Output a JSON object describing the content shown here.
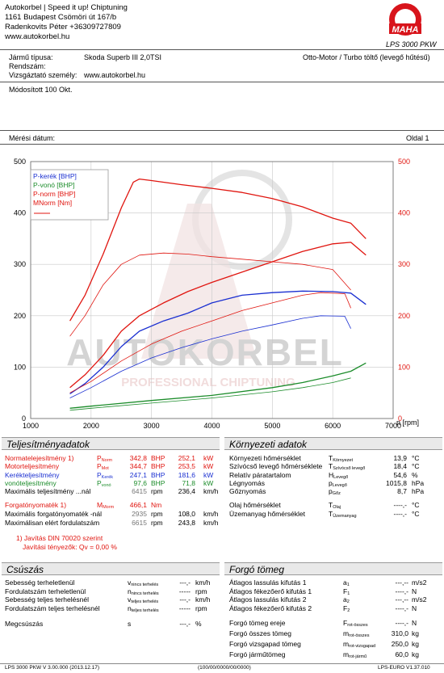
{
  "header": {
    "company_lines": [
      "Autokorbel | Speed it up! Chiptuning",
      "1161 Budapest Csömöri út 167/b",
      "Radenkovits Péter +36309727809",
      "www.autokorbel.hu"
    ],
    "logo_ring_text": "Maschinenbau Haldenwang",
    "logo_text": "MAHA",
    "product": "LPS 3000 PKW"
  },
  "vehicle": {
    "type_label": "Jármű típusa:",
    "type_value": "Skoda Superb III 2,0TSI",
    "engine": "Otto-Motor / Turbo töltő (levegő hűtésű)",
    "reg_label": "Rendszám:",
    "reg_value": "",
    "examiner_label": "Vizsgáztató személy:",
    "examiner_value": "www.autokorbel.hu",
    "modified": "Módosított 100 Okt.",
    "date_label": "Mérési dátum:",
    "page": "Oldal 1"
  },
  "chart_data": {
    "type": "line",
    "x_label": "n [rpm]",
    "xlim": [
      1000,
      7000
    ],
    "x_ticks": [
      1000,
      2000,
      3000,
      4000,
      5000,
      6000,
      7000
    ],
    "ylim_left": [
      0,
      500
    ],
    "ylim_right": [
      0,
      500
    ],
    "y_ticks": [
      0,
      100,
      200,
      300,
      400,
      500
    ],
    "legend": [
      {
        "label": "P-kerék [BHP]",
        "color": "#1a2fd1"
      },
      {
        "label": "P-vonó [BHP]",
        "color": "#1b8c2a"
      },
      {
        "label": "P-norm [BHP]",
        "color": "#e0150f"
      },
      {
        "label": "MNorm [Nm]",
        "color": "#e0150f"
      }
    ],
    "watermark": {
      "line1": "AUTOKORBEL",
      "line2": "PROFESSIONAL CHIPTUNING"
    },
    "series": [
      {
        "name": "P-kerék [BHP]",
        "color": "#1a2fd1",
        "x": [
          1650,
          1900,
          2200,
          2500,
          2800,
          3200,
          3600,
          4000,
          4500,
          5000,
          5500,
          6000,
          6300,
          6550
        ],
        "y": [
          48,
          68,
          100,
          140,
          170,
          190,
          205,
          225,
          240,
          245,
          248,
          247,
          244,
          222
        ]
      },
      {
        "name": "P-kerék (stock)",
        "color": "#1a2fd1",
        "x": [
          1650,
          2000,
          2500,
          3000,
          3500,
          4000,
          4500,
          5000,
          5500,
          5800,
          6200,
          6300
        ],
        "y": [
          40,
          60,
          92,
          118,
          138,
          155,
          170,
          182,
          195,
          200,
          199,
          175
        ]
      },
      {
        "name": "P-vonó [BHP]",
        "color": "#1b8c2a",
        "x": [
          1650,
          2000,
          3000,
          4000,
          5000,
          5500,
          6000,
          6300,
          6550
        ],
        "y": [
          20,
          24,
          35,
          45,
          60,
          70,
          83,
          92,
          108
        ]
      },
      {
        "name": "P-vonó (stock)",
        "color": "#1b8c2a",
        "x": [
          1650,
          2000,
          3000,
          4000,
          5000,
          5500,
          6000,
          6300
        ],
        "y": [
          16,
          20,
          30,
          40,
          52,
          60,
          70,
          79
        ]
      },
      {
        "name": "P-norm [BHP]",
        "color": "#e0150f",
        "x": [
          1650,
          1900,
          2200,
          2500,
          2800,
          3200,
          3600,
          4000,
          4500,
          5000,
          5500,
          6000,
          6300,
          6550
        ],
        "y": [
          60,
          85,
          123,
          170,
          200,
          225,
          247,
          265,
          285,
          305,
          325,
          340,
          343,
          318
        ]
      },
      {
        "name": "P-norm (stock)",
        "color": "#e0150f",
        "x": [
          1650,
          2000,
          2500,
          3000,
          3500,
          4000,
          4500,
          5000,
          5500,
          5800,
          6200,
          6300
        ],
        "y": [
          50,
          72,
          112,
          145,
          170,
          190,
          210,
          225,
          240,
          245,
          243,
          215
        ]
      },
      {
        "name": "MNorm [Nm]",
        "color": "#e0150f",
        "x": [
          1650,
          1900,
          2200,
          2500,
          2700,
          2800,
          3000,
          3500,
          4000,
          4500,
          5000,
          5500,
          6000,
          6300,
          6550
        ],
        "y": [
          190,
          240,
          320,
          410,
          460,
          466,
          463,
          455,
          448,
          440,
          428,
          412,
          390,
          380,
          350
        ]
      },
      {
        "name": "MNorm (stock)",
        "color": "#e0150f",
        "x": [
          1650,
          1900,
          2200,
          2500,
          2800,
          3200,
          3600,
          4000,
          4500,
          5000,
          5500,
          6000,
          6300
        ],
        "y": [
          160,
          200,
          260,
          300,
          318,
          322,
          320,
          315,
          310,
          305,
          300,
          290,
          250
        ]
      }
    ]
  },
  "performance": {
    "title": "Teljesítményadatok",
    "rows": [
      {
        "label": "Normatelejesítmény 1)",
        "sym": "P",
        "sub": "Norm",
        "v1": "342,8",
        "u1": "BHP",
        "v2": "252,1",
        "u2": "kW",
        "color": "red"
      },
      {
        "label": "Motorteljesítmény",
        "sym": "P",
        "sub": "Mot",
        "v1": "344,7",
        "u1": "BHP",
        "v2": "253,5",
        "u2": "kW",
        "color": "red"
      },
      {
        "label": "Kerékteljesítmény",
        "sym": "P",
        "sub": "Kerék",
        "v1": "247,1",
        "u1": "BHP",
        "v2": "181,6",
        "u2": "kW",
        "color": "blue"
      },
      {
        "label": "vonóteljesítmény",
        "sym": "P",
        "sub": "vonó",
        "v1": "97,6",
        "u1": "BHP",
        "v2": "71,8",
        "u2": "kW",
        "color": "green"
      },
      {
        "label": "Maximális teljesítmény ...nál",
        "sym": "",
        "sub": "",
        "v1": "6415",
        "u1": "rpm",
        "v2": "236,4",
        "u2": "km/h",
        "color": "black"
      }
    ],
    "torque_rows": [
      {
        "label": "Forgatónyomaték 1)",
        "sym": "M",
        "sub": "Morm",
        "v1": "466,1",
        "u1": "Nm",
        "v2": "",
        "u2": "",
        "color": "red"
      },
      {
        "label": "Maximális forgatónyomaték -nál",
        "sym": "",
        "sub": "",
        "v1": "2935",
        "u1": "rpm",
        "v2": "108,0",
        "u2": "km/h",
        "color": "black"
      },
      {
        "label": "Maximálisan elért fordulatszám",
        "sym": "",
        "sub": "",
        "v1": "6615",
        "u1": "rpm",
        "v2": "243,8",
        "u2": "km/h",
        "color": "black"
      }
    ],
    "footnote1": "1) Javítás DIN 70020 szerint",
    "footnote2": "Javítási tényezők: Qv =   0,00 %"
  },
  "environment": {
    "title": "Környezeti adatok",
    "rows": [
      {
        "label": "Környezeti hőmérséklet",
        "sym": "T",
        "sub": "Környezet",
        "val": "13,9",
        "unit": "°C"
      },
      {
        "label": "Szívócső levegő hőmérséklete",
        "sym": "T",
        "sub": "Szívócső levegő",
        "val": "18,4",
        "unit": "°C"
      },
      {
        "label": "Relatív páratartalom",
        "sym": "H",
        "sub": "Levegő",
        "val": "54,6",
        "unit": "%"
      },
      {
        "label": "Légnyomás",
        "sym": "p",
        "sub": "Levegő",
        "val": "1015,8",
        "unit": "hPa"
      },
      {
        "label": "Gőznyomás",
        "sym": "p",
        "sub": "Gőz",
        "val": "8,7",
        "unit": "hPa"
      },
      {
        "label": "Olaj hőmérséklet",
        "sym": "T",
        "sub": "Olaj",
        "val": "----,-",
        "unit": "°C"
      },
      {
        "label": "Üzemanyag hőmérséklet",
        "sym": "T",
        "sub": "Üzemanyag",
        "val": "----,-",
        "unit": "°C"
      }
    ]
  },
  "slip": {
    "title": "Csúszás",
    "rows": [
      {
        "label": "Sebesség terheletlenül",
        "sym": "v",
        "sub": "nincs terhelés",
        "val": "---,-",
        "unit": "km/h"
      },
      {
        "label": "Fordulatszám terheletlenül",
        "sym": "n",
        "sub": "nincs terhelés",
        "val": "-----",
        "unit": "rpm"
      },
      {
        "label": "Sebesség teljes terhelésnél",
        "sym": "v",
        "sub": "teljes terhelés",
        "val": "---,-",
        "unit": "km/h"
      },
      {
        "label": "Fordulatszám teljes terhelésnél",
        "sym": "n",
        "sub": "teljes terhelés",
        "val": "-----",
        "unit": "rpm"
      },
      {
        "label": "Megcsúszás",
        "sym": "s",
        "sub": "",
        "val": "---,-",
        "unit": "%"
      }
    ]
  },
  "rotating": {
    "title": "Forgó tömeg",
    "rows": [
      {
        "label": "Átlagos lassulás kifutás 1",
        "sym": "a",
        "sub": "1",
        "val": "---,--",
        "unit": "m/s2"
      },
      {
        "label": "Átlagos fékezőerő kifutás 1",
        "sym": "F",
        "sub": "1",
        "val": "----,-",
        "unit": "N"
      },
      {
        "label": "Átlagos lassulás kifutás 2",
        "sym": "a",
        "sub": "2",
        "val": "---,--",
        "unit": "m/s2"
      },
      {
        "label": "Átlagos fékezőerő kifutás 2",
        "sym": "F",
        "sub": "2",
        "val": "----,-",
        "unit": "N"
      },
      {
        "label": "Forgó tömeg ereje",
        "sym": "F",
        "sub": "rot-összes",
        "val": "----,-",
        "unit": "N"
      },
      {
        "label": "Forgó összes tömeg",
        "sym": "m",
        "sub": "rot-összes",
        "val": "310,0",
        "unit": "kg"
      },
      {
        "label": "Forgó vizsgapad tömeg",
        "sym": "m",
        "sub": "rot-vizsgapad",
        "val": "250,0",
        "unit": "kg"
      },
      {
        "label": "Forgó járműtömeg",
        "sym": "m",
        "sub": "rot-jármű",
        "val": "60,0",
        "unit": "kg"
      }
    ]
  },
  "footer": {
    "left": "LPS 3000 PKW V 3.00.000 (2013.12.17)",
    "center": "(100/00/0000/00/0000)",
    "right": "LPS-EURO V1.37.010"
  }
}
